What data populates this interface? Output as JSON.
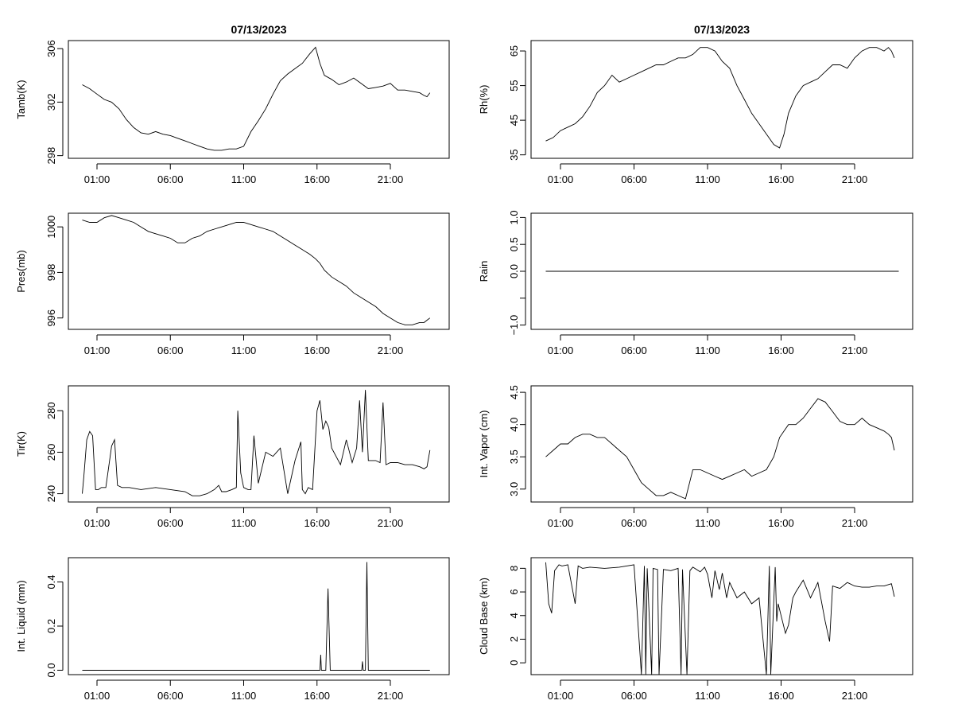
{
  "chart_data": [
    {
      "type": "line",
      "title": "07/13/2023",
      "ylabel": "Tamb(K)",
      "xlim": [
        0.0,
        24.0
      ],
      "ylim": [
        297.8,
        306.6
      ],
      "xticks": [
        1,
        6,
        11,
        16,
        21
      ],
      "xtick_labels": [
        "01:00",
        "06:00",
        "11:00",
        "16:00",
        "21:00"
      ],
      "yticks": [
        298,
        302,
        306
      ],
      "ytick_labels": [
        "298",
        "302",
        "306"
      ],
      "series": [
        {
          "name": "Tamb",
          "x": [
            0.0,
            0.5,
            1.0,
            1.5,
            2.0,
            2.5,
            3.0,
            3.5,
            4.0,
            4.5,
            5.0,
            5.5,
            6.0,
            6.5,
            7.0,
            7.5,
            8.0,
            8.5,
            9.0,
            9.5,
            10.0,
            10.5,
            11.0,
            11.5,
            12.0,
            12.5,
            13.0,
            13.5,
            14.0,
            14.5,
            15.0,
            15.5,
            15.9,
            16.2,
            16.5,
            17.0,
            17.5,
            18.0,
            18.5,
            19.0,
            19.5,
            20.0,
            20.5,
            21.0,
            21.5,
            22.0,
            22.5,
            23.0,
            23.3,
            23.5,
            23.7
          ],
          "y": [
            303.3,
            303.0,
            302.6,
            302.2,
            302.0,
            301.5,
            300.7,
            300.1,
            299.7,
            299.6,
            299.8,
            299.6,
            299.5,
            299.3,
            299.1,
            298.9,
            298.7,
            298.5,
            298.4,
            298.4,
            298.5,
            298.5,
            298.7,
            299.8,
            300.6,
            301.5,
            302.6,
            303.6,
            304.1,
            304.5,
            304.9,
            305.6,
            306.1,
            304.9,
            304.0,
            303.7,
            303.3,
            303.5,
            303.8,
            303.4,
            303.0,
            303.1,
            303.2,
            303.4,
            302.9,
            302.9,
            302.8,
            302.7,
            302.5,
            302.4,
            302.7
          ]
        }
      ]
    },
    {
      "type": "line",
      "title": "07/13/2023",
      "ylabel": "Rh(%)",
      "xlim": [
        0.0,
        24.0
      ],
      "ylim": [
        34.0,
        68.0
      ],
      "xticks": [
        1,
        6,
        11,
        16,
        21
      ],
      "xtick_labels": [
        "01:00",
        "06:00",
        "11:00",
        "16:00",
        "21:00"
      ],
      "yticks": [
        35,
        45,
        55,
        65
      ],
      "ytick_labels": [
        "35",
        "45",
        "55",
        "65"
      ],
      "series": [
        {
          "name": "Rh",
          "x": [
            0.0,
            0.5,
            1.0,
            1.5,
            2.0,
            2.5,
            3.0,
            3.5,
            4.0,
            4.5,
            5.0,
            5.5,
            6.0,
            6.5,
            7.0,
            7.5,
            8.0,
            8.5,
            9.0,
            9.5,
            10.0,
            10.5,
            11.0,
            11.5,
            12.0,
            12.5,
            13.0,
            13.5,
            14.0,
            14.5,
            15.0,
            15.5,
            15.9,
            16.2,
            16.5,
            17.0,
            17.5,
            18.0,
            18.5,
            19.0,
            19.5,
            20.0,
            20.5,
            21.0,
            21.5,
            22.0,
            22.5,
            23.0,
            23.3,
            23.5,
            23.7
          ],
          "y": [
            39,
            40,
            42,
            43,
            44,
            46,
            49,
            53,
            55,
            58,
            56,
            57,
            58,
            59,
            60,
            61,
            61,
            62,
            63,
            63,
            64,
            66,
            66,
            65,
            62,
            60,
            55,
            51,
            47,
            44,
            41,
            38,
            37,
            41,
            47,
            52,
            55,
            56,
            57,
            59,
            61,
            61,
            60,
            63,
            65,
            66,
            66,
            65,
            66,
            65,
            63
          ]
        }
      ]
    },
    {
      "type": "line",
      "ylabel": "Pres(mb)",
      "xlim": [
        0.0,
        24.0
      ],
      "ylim": [
        995.5,
        1000.6
      ],
      "xticks": [
        1,
        6,
        11,
        16,
        21
      ],
      "xtick_labels": [
        "01:00",
        "06:00",
        "11:00",
        "16:00",
        "21:00"
      ],
      "yticks": [
        996,
        998,
        1000
      ],
      "ytick_labels": [
        "996",
        "998",
        "1000"
      ],
      "series": [
        {
          "name": "Pres",
          "x": [
            0.0,
            0.5,
            1.0,
            1.5,
            2.0,
            2.5,
            3.0,
            3.5,
            4.0,
            4.5,
            5.0,
            5.5,
            6.0,
            6.5,
            7.0,
            7.5,
            8.0,
            8.5,
            9.0,
            9.5,
            10.0,
            10.5,
            11.0,
            11.5,
            12.0,
            12.5,
            13.0,
            13.5,
            14.0,
            14.5,
            15.0,
            15.5,
            15.9,
            16.2,
            16.5,
            17.0,
            17.5,
            18.0,
            18.5,
            19.0,
            19.5,
            20.0,
            20.5,
            21.0,
            21.5,
            22.0,
            22.5,
            23.0,
            23.3,
            23.5,
            23.7
          ],
          "y": [
            1000.3,
            1000.2,
            1000.2,
            1000.4,
            1000.5,
            1000.4,
            1000.3,
            1000.2,
            1000.0,
            999.8,
            999.7,
            999.6,
            999.5,
            999.3,
            999.3,
            999.5,
            999.6,
            999.8,
            999.9,
            1000.0,
            1000.1,
            1000.2,
            1000.2,
            1000.1,
            1000.0,
            999.9,
            999.8,
            999.6,
            999.4,
            999.2,
            999.0,
            998.8,
            998.6,
            998.4,
            998.1,
            997.8,
            997.6,
            997.4,
            997.1,
            996.9,
            996.7,
            996.5,
            996.2,
            996.0,
            995.8,
            995.7,
            995.7,
            995.8,
            995.8,
            995.9,
            996.0
          ]
        }
      ]
    },
    {
      "type": "line",
      "ylabel": "Rain",
      "xlim": [
        0.0,
        24.0
      ],
      "ylim": [
        -1.08,
        1.08
      ],
      "xticks": [
        1,
        6,
        11,
        16,
        21
      ],
      "xtick_labels": [
        "01:00",
        "06:00",
        "11:00",
        "16:00",
        "21:00"
      ],
      "yticks": [
        -1.0,
        -0.5,
        0.0,
        0.5,
        1.0
      ],
      "ytick_labels": [
        "-1.0",
        "",
        "0.0",
        "0.5",
        "1.0"
      ],
      "series": [
        {
          "name": "Rain",
          "x": [
            0.0,
            24.0
          ],
          "y": [
            0.0,
            0.0
          ]
        }
      ]
    },
    {
      "type": "line",
      "ylabel": "Tir(K)",
      "xlim": [
        0.0,
        24.0
      ],
      "ylim": [
        236.0,
        292.0
      ],
      "xticks": [
        1,
        6,
        11,
        16,
        21
      ],
      "xtick_labels": [
        "01:00",
        "06:00",
        "11:00",
        "16:00",
        "21:00"
      ],
      "yticks": [
        240,
        260,
        280
      ],
      "ytick_labels": [
        "240",
        "260",
        "280"
      ],
      "series": [
        {
          "name": "Tir",
          "x": [
            0.0,
            0.1,
            0.3,
            0.5,
            0.7,
            0.9,
            1.1,
            1.3,
            1.6,
            2.0,
            2.2,
            2.4,
            2.7,
            3.2,
            4.0,
            5.0,
            6.0,
            7.0,
            7.5,
            8.0,
            8.5,
            9.0,
            9.3,
            9.5,
            9.8,
            10.2,
            10.5,
            10.6,
            10.8,
            11.0,
            11.3,
            11.5,
            11.7,
            12.0,
            12.5,
            13.0,
            13.5,
            14.0,
            14.5,
            14.9,
            15.0,
            15.2,
            15.4,
            15.7,
            16.0,
            16.2,
            16.4,
            16.6,
            16.8,
            17.0,
            17.3,
            17.6,
            18.0,
            18.4,
            18.7,
            18.9,
            19.1,
            19.3,
            19.5,
            19.7,
            20.0,
            20.3,
            20.5,
            20.7,
            21.0,
            21.5,
            22.0,
            22.5,
            23.0,
            23.3,
            23.5,
            23.7
          ],
          "y": [
            240,
            248,
            266,
            270,
            268,
            242,
            242,
            243,
            243,
            263,
            266,
            244,
            243,
            243,
            242,
            243,
            242,
            241,
            239,
            239,
            240,
            242,
            244,
            241,
            241,
            242,
            243,
            280,
            250,
            243,
            242,
            242,
            268,
            245,
            260,
            258,
            262,
            240,
            256,
            265,
            242,
            240,
            243,
            242,
            280,
            285,
            271,
            275,
            272,
            262,
            258,
            254,
            266,
            255,
            262,
            285,
            260,
            290,
            256,
            256,
            256,
            255,
            284,
            254,
            255,
            255,
            254,
            254,
            253,
            252,
            253,
            261
          ]
        }
      ]
    },
    {
      "type": "line",
      "ylabel": "Int. Vapor (cm)",
      "xlim": [
        0.0,
        24.0
      ],
      "ylim": [
        2.8,
        4.6
      ],
      "xticks": [
        1,
        6,
        11,
        16,
        21
      ],
      "xtick_labels": [
        "01:00",
        "06:00",
        "11:00",
        "16:00",
        "21:00"
      ],
      "yticks": [
        3.0,
        3.5,
        4.0,
        4.5
      ],
      "ytick_labels": [
        "3.0",
        "3.5",
        "4.0",
        "4.5"
      ],
      "series": [
        {
          "name": "Int. Vapor",
          "x": [
            0.0,
            0.5,
            1.0,
            1.5,
            2.0,
            2.5,
            3.0,
            3.5,
            4.0,
            4.5,
            5.0,
            5.5,
            6.0,
            6.5,
            7.0,
            7.5,
            8.0,
            8.5,
            9.0,
            9.5,
            10.0,
            10.5,
            11.0,
            11.5,
            12.0,
            12.5,
            13.0,
            13.5,
            14.0,
            14.5,
            15.0,
            15.5,
            15.9,
            16.2,
            16.5,
            17.0,
            17.5,
            18.0,
            18.5,
            19.0,
            19.5,
            20.0,
            20.5,
            21.0,
            21.5,
            22.0,
            22.5,
            23.0,
            23.3,
            23.5,
            23.7
          ],
          "y": [
            3.5,
            3.6,
            3.7,
            3.7,
            3.8,
            3.85,
            3.85,
            3.8,
            3.8,
            3.7,
            3.6,
            3.5,
            3.3,
            3.1,
            3.0,
            2.9,
            2.9,
            2.95,
            2.9,
            2.85,
            3.3,
            3.3,
            3.25,
            3.2,
            3.15,
            3.2,
            3.25,
            3.3,
            3.2,
            3.25,
            3.3,
            3.5,
            3.8,
            3.9,
            4.0,
            4.0,
            4.1,
            4.25,
            4.4,
            4.35,
            4.2,
            4.05,
            4.0,
            4.0,
            4.1,
            4.0,
            3.95,
            3.9,
            3.85,
            3.8,
            3.6
          ]
        }
      ]
    },
    {
      "type": "line",
      "ylabel": "Int. Liquid (mm)",
      "xlim": [
        0.0,
        24.0
      ],
      "ylim": [
        -0.02,
        0.51
      ],
      "xticks": [
        1,
        6,
        11,
        16,
        21
      ],
      "xtick_labels": [
        "01:00",
        "06:00",
        "11:00",
        "16:00",
        "21:00"
      ],
      "yticks": [
        0.0,
        0.2,
        0.4
      ],
      "ytick_labels": [
        "0.0",
        "0.2",
        "0.4"
      ],
      "series": [
        {
          "name": "Int. Liquid",
          "x": [
            0.0,
            16.2,
            16.25,
            16.3,
            16.6,
            16.75,
            16.9,
            19.05,
            19.1,
            19.15,
            19.3,
            19.4,
            19.5,
            23.7
          ],
          "y": [
            0,
            0,
            0.07,
            0,
            0,
            0.37,
            0,
            0,
            0.04,
            0,
            0,
            0.49,
            0,
            0
          ]
        }
      ]
    },
    {
      "type": "line",
      "ylabel": "Cloud Base (km)",
      "xlim": [
        0.0,
        24.0
      ],
      "ylim": [
        -1.0,
        8.9
      ],
      "xticks": [
        1,
        6,
        11,
        16,
        21
      ],
      "xtick_labels": [
        "01:00",
        "06:00",
        "11:00",
        "16:00",
        "21:00"
      ],
      "yticks": [
        0,
        2,
        4,
        6,
        8
      ],
      "ytick_labels": [
        "0",
        "2",
        "4",
        "6",
        "8"
      ],
      "series": [
        {
          "name": "Cloud Base",
          "x": [
            0.0,
            0.2,
            0.4,
            0.6,
            0.9,
            1.1,
            1.5,
            2.0,
            2.2,
            2.5,
            3.0,
            4.0,
            5.0,
            6.0,
            6.5,
            6.7,
            6.8,
            6.9,
            7.2,
            7.3,
            7.6,
            7.7,
            8.0,
            8.5,
            9.0,
            9.2,
            9.3,
            9.6,
            9.8,
            10.0,
            10.5,
            10.8,
            11.0,
            11.3,
            11.5,
            11.8,
            12.0,
            12.3,
            12.5,
            13.0,
            13.5,
            14.0,
            14.5,
            15.0,
            15.2,
            15.3,
            15.6,
            15.7,
            15.8,
            16.0,
            16.3,
            16.5,
            16.8,
            17.0,
            17.5,
            18.0,
            18.5,
            19.0,
            19.3,
            19.5,
            20.0,
            20.5,
            21.0,
            21.5,
            22.0,
            22.5,
            23.0,
            23.5,
            23.7
          ],
          "y": [
            8.5,
            5.0,
            4.2,
            7.8,
            8.3,
            8.2,
            8.3,
            5.0,
            8.2,
            8.0,
            8.1,
            8.0,
            8.1,
            8.3,
            -1.0,
            8.2,
            -1.0,
            8.0,
            -1.0,
            8.0,
            7.9,
            -1.0,
            7.9,
            7.8,
            8.0,
            -1.0,
            7.9,
            -1.0,
            7.8,
            8.1,
            7.7,
            8.1,
            7.5,
            5.5,
            7.8,
            6.2,
            7.6,
            5.5,
            6.8,
            5.5,
            6.0,
            5.0,
            5.5,
            -1.0,
            8.2,
            -1.0,
            8.1,
            3.5,
            5.0,
            4.0,
            2.5,
            3.2,
            5.5,
            6.0,
            7.0,
            5.5,
            6.8,
            3.5,
            1.8,
            6.5,
            6.3,
            6.8,
            6.5,
            6.4,
            6.4,
            6.5,
            6.5,
            6.7,
            5.6
          ]
        }
      ]
    }
  ]
}
